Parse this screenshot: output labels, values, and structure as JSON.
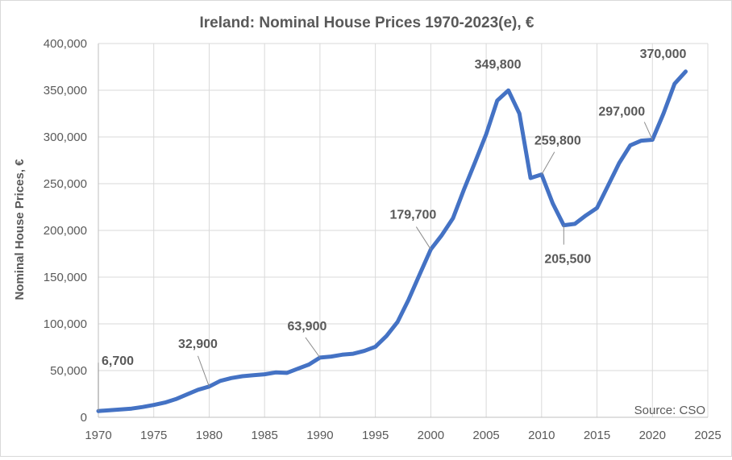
{
  "chart_data": {
    "type": "line",
    "title": "Ireland: Nominal House Prices 1970-2023(e), €",
    "xlabel": "",
    "ylabel": "Nominal House Prices, €",
    "xlim": [
      1970,
      2025
    ],
    "ylim": [
      0,
      400000
    ],
    "x_ticks": [
      1970,
      1975,
      1980,
      1985,
      1990,
      1995,
      2000,
      2005,
      2010,
      2015,
      2020,
      2025
    ],
    "y_ticks": [
      0,
      50000,
      100000,
      150000,
      200000,
      250000,
      300000,
      350000,
      400000
    ],
    "y_tick_labels": [
      "0",
      "50,000",
      "100,000",
      "150,000",
      "200,000",
      "250,000",
      "300,000",
      "350,000",
      "400,000"
    ],
    "grid": true,
    "series": [
      {
        "color": "#4472c4",
        "x": [
          1970,
          1971,
          1972,
          1973,
          1974,
          1975,
          1976,
          1977,
          1978,
          1979,
          1980,
          1981,
          1982,
          1983,
          1984,
          1985,
          1986,
          1987,
          1988,
          1989,
          1990,
          1991,
          1992,
          1993,
          1994,
          1995,
          1996,
          1997,
          1998,
          1999,
          2000,
          2001,
          2002,
          2003,
          2004,
          2005,
          2006,
          2007,
          2008,
          2009,
          2010,
          2011,
          2012,
          2013,
          2014,
          2015,
          2016,
          2017,
          2018,
          2019,
          2020,
          2021,
          2022,
          2023
        ],
        "values": [
          6700,
          7600,
          8400,
          9300,
          11000,
          13200,
          15800,
          19500,
          24500,
          29500,
          32900,
          39000,
          42000,
          44000,
          45000,
          46000,
          48000,
          47500,
          52000,
          56500,
          63900,
          65000,
          67000,
          68000,
          71000,
          75500,
          87000,
          102000,
          126000,
          153000,
          179700,
          195000,
          213000,
          244000,
          273000,
          303000,
          339000,
          349800,
          325000,
          256000,
          259800,
          229000,
          205500,
          207000,
          216000,
          224000,
          248000,
          272000,
          291000,
          296000,
          297000,
          325000,
          357000,
          370000
        ]
      }
    ],
    "annotations": [
      {
        "x": 1970,
        "y": 6700,
        "text": "6,700"
      },
      {
        "x": 1980,
        "y": 32900,
        "text": "32,900"
      },
      {
        "x": 1990,
        "y": 63900,
        "text": "63,900"
      },
      {
        "x": 2000,
        "y": 179700,
        "text": "179,700"
      },
      {
        "x": 2007,
        "y": 349800,
        "text": "349,800"
      },
      {
        "x": 2010,
        "y": 259800,
        "text": "259,800"
      },
      {
        "x": 2012,
        "y": 205500,
        "text": "205,500"
      },
      {
        "x": 2020,
        "y": 297000,
        "text": "297,000"
      },
      {
        "x": 2023,
        "y": 370000,
        "text": "370,000"
      }
    ],
    "source": "Source: CSO"
  }
}
